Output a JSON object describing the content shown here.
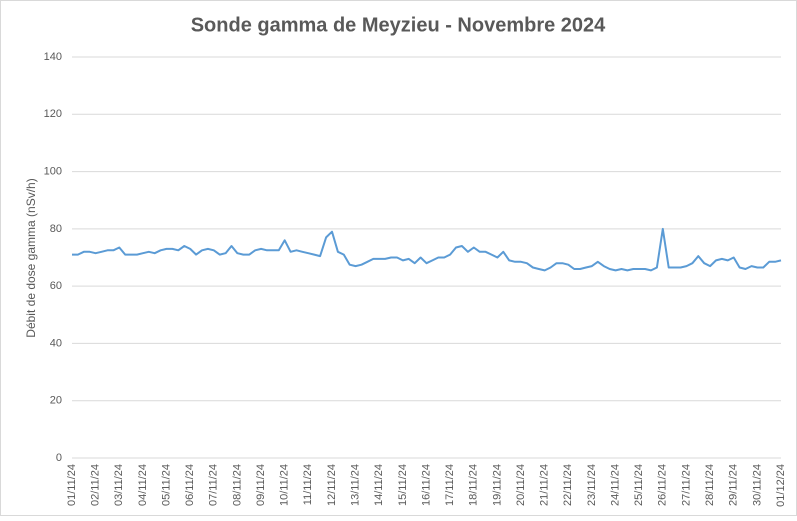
{
  "chart_data": {
    "type": "line",
    "title": "Sonde gamma de Meyzieu - Novembre 2024",
    "ylabel": "Débit de dose gamma (nSv/h)",
    "categories": [
      "01/11/24",
      null,
      null,
      null,
      "02/11/24",
      null,
      null,
      null,
      "03/11/24",
      null,
      null,
      null,
      "04/11/24",
      null,
      null,
      null,
      "05/11/24",
      null,
      null,
      null,
      "06/11/24",
      null,
      null,
      null,
      "07/11/24",
      null,
      null,
      null,
      "08/11/24",
      null,
      null,
      null,
      "09/11/24",
      null,
      null,
      null,
      "10/11/24",
      null,
      null,
      null,
      "11/11/24",
      null,
      null,
      null,
      "12/11/24",
      null,
      null,
      null,
      "13/11/24",
      null,
      null,
      null,
      "14/11/24",
      null,
      null,
      null,
      "15/11/24",
      null,
      null,
      null,
      "16/11/24",
      null,
      null,
      null,
      "17/11/24",
      null,
      null,
      null,
      "18/11/24",
      null,
      null,
      null,
      "19/11/24",
      null,
      null,
      null,
      "20/11/24",
      null,
      null,
      null,
      "21/11/24",
      null,
      null,
      null,
      "22/11/24",
      null,
      null,
      null,
      "23/11/24",
      null,
      null,
      null,
      "24/11/24",
      null,
      null,
      null,
      "25/11/24",
      null,
      null,
      null,
      "26/11/24",
      null,
      null,
      null,
      "27/11/24",
      null,
      null,
      null,
      "28/11/24",
      null,
      null,
      null,
      "29/11/24",
      null,
      null,
      null,
      "30/11/24",
      null,
      null,
      null,
      "01/12/24"
    ],
    "series": [
      {
        "name": "Débit de dose gamma",
        "color": "#5b9bd5",
        "values": [
          71,
          71,
          72,
          72,
          71.5,
          72,
          72.5,
          72.5,
          73.5,
          71,
          71,
          71,
          71.5,
          72,
          71.5,
          72.5,
          73,
          73,
          72.5,
          74,
          73,
          71,
          72.5,
          73,
          72.5,
          71,
          71.5,
          74,
          71.5,
          71,
          71,
          72.5,
          73,
          72.5,
          72.5,
          72.5,
          76,
          72,
          72.5,
          72,
          71.5,
          71,
          70.5,
          77,
          79,
          72,
          71,
          67.5,
          67,
          67.5,
          68.5,
          69.5,
          69.5,
          69.5,
          70,
          70,
          69,
          69.5,
          68,
          70,
          68,
          69,
          70,
          70,
          71,
          73.5,
          74,
          72,
          73.5,
          72,
          72,
          71,
          70,
          72,
          69,
          68.5,
          68.5,
          68,
          66.5,
          66,
          65.5,
          66.5,
          68,
          68,
          67.5,
          66,
          66,
          66.5,
          67,
          68.5,
          67,
          66,
          65.5,
          66,
          65.5,
          66,
          66,
          66,
          65.5,
          66.5,
          80,
          66.5,
          66.5,
          66.5,
          67,
          68,
          70.5,
          68,
          67,
          69,
          69.5,
          69,
          70,
          66.5,
          66,
          67,
          66.5,
          66.5,
          68.5,
          68.5,
          69
        ]
      }
    ],
    "ylim": [
      0,
      140
    ],
    "yticks": [
      0,
      20,
      40,
      60,
      80,
      100,
      120,
      140
    ],
    "grid": true
  }
}
